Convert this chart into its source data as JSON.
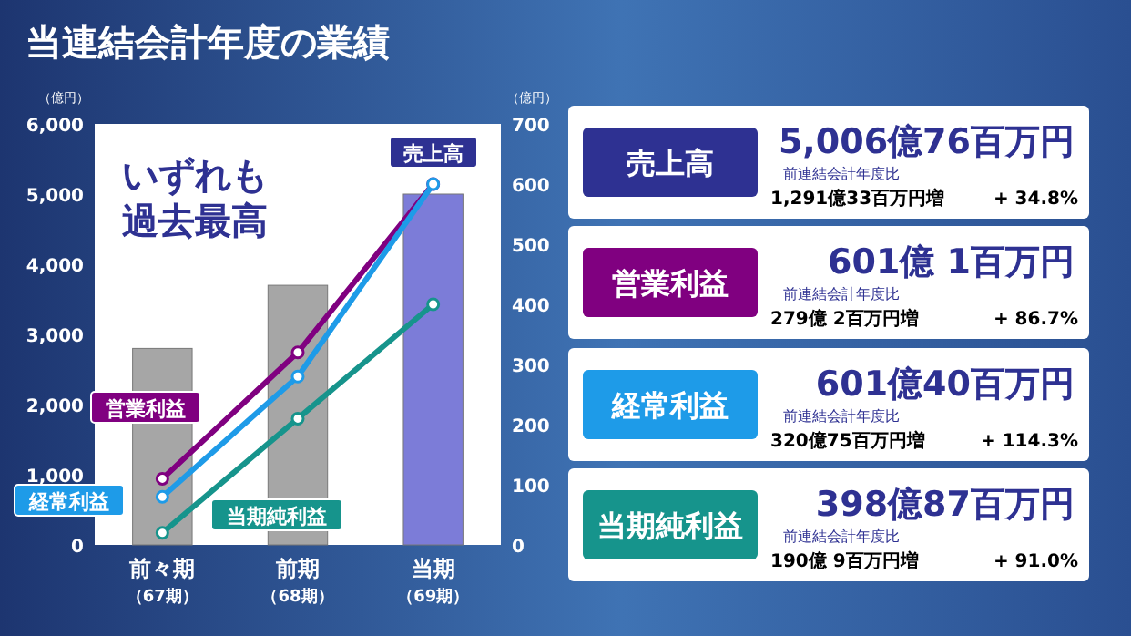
{
  "chart_data": [
    {
      "type": "bar",
      "title": "当連結会計年度の業績",
      "ylabel": "（億円）",
      "y2label": "（億円）",
      "annotations": [
        "いずれも過去最高"
      ],
      "categories": [
        "前々期（67期）",
        "前期（68期）",
        "当期（69期）"
      ],
      "legend": false,
      "marker": "circle",
      "ylim": [
        0,
        6000
      ],
      "yticks": [
        0,
        {
          "value": 1000,
          "label": "1,000"
        },
        {
          "value": 2000,
          "label": "2,000"
        },
        {
          "value": 3000,
          "label": "3,000"
        },
        {
          "value": 4000,
          "label": "4,000"
        },
        {
          "value": 5000,
          "label": "5,000"
        },
        {
          "value": 6000,
          "label": "6,000"
        }
      ],
      "y2lim": [
        0,
        700
      ],
      "y2ticks": [
        0,
        100,
        200,
        300,
        400,
        500,
        600,
        700
      ],
      "series": [
        {
          "name": "売上高",
          "type": "bar",
          "color": "#2e3192",
          "colors": [
            "#a6a6a6",
            "#a6a6a6",
            "#7c7cd8"
          ],
          "values": [
            2800,
            3700,
            5000
          ]
        },
        {
          "name": "営業利益",
          "type": "line",
          "axis": "y2",
          "color": "#800080",
          "values": [
            110,
            320,
            600
          ]
        },
        {
          "name": "経常利益",
          "type": "line",
          "axis": "y2",
          "color": "#1e9be8",
          "values": [
            80,
            280,
            600
          ]
        },
        {
          "name": "当期純利益",
          "type": "line",
          "axis": "y2",
          "color": "#16948c",
          "values": [
            20,
            210,
            400
          ]
        }
      ]
    },
    {
      "type": "other",
      "colors": [
        "#2e3192",
        "#800080",
        "#1e9be8",
        "#16948c"
      ],
      "annotations": [
        "売上高",
        "5,006億76百万円",
        "前連結会計年度比",
        "1,291億33百万円増",
        "+ 34.8%",
        "営業利益",
        "601億 1百万円",
        "前連結会計年度比",
        "279億 2百万円増",
        "+ 86.7%",
        "経常利益",
        "601億40百万円",
        "前連結会計年度比",
        "320億75百万円増",
        "+ 114.3%",
        "当期純利益",
        "398億87百万円",
        "前連結会計年度比",
        "190億 9百万円増",
        "+ 91.0%"
      ]
    }
  ]
}
